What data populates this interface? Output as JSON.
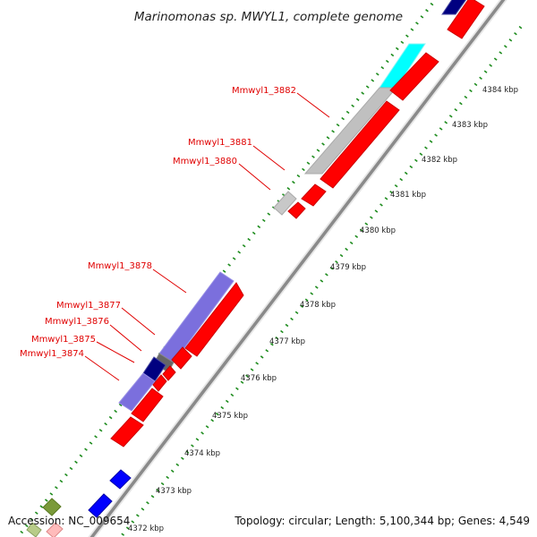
{
  "title": "Marinomonas sp. MWYL1, complete genome",
  "accession": "Accession: NC_009654",
  "summary": "Topology: circular; Length: 5,100,344 bp; Genes: 4,549",
  "gene_labels": [
    {
      "id": "gene-label-3882",
      "text": "Mmwyl1_3882"
    },
    {
      "id": "gene-label-3881",
      "text": "Mmwyl1_3881"
    },
    {
      "id": "gene-label-3880",
      "text": "Mmwyl1_3880"
    },
    {
      "id": "gene-label-3878",
      "text": "Mmwyl1_3878"
    },
    {
      "id": "gene-label-3877",
      "text": "Mmwyl1_3877"
    },
    {
      "id": "gene-label-3876",
      "text": "Mmwyl1_3876"
    },
    {
      "id": "gene-label-3875",
      "text": "Mmwyl1_3875"
    },
    {
      "id": "gene-label-3874",
      "text": "Mmwyl1_3874"
    }
  ],
  "ticks": [
    "4384 kbp",
    "4383 kbp",
    "4382 kbp",
    "4381 kbp",
    "4380 kbp",
    "4379 kbp",
    "4378 kbp",
    "4377 kbp",
    "4376 kbp",
    "4375 kbp",
    "4374 kbp",
    "4373 kbp",
    "4372 kbp"
  ],
  "colors": {
    "label_red": "#e00000",
    "feature_red": "#ff0000",
    "backbone": "#999999",
    "tick_green": "#1e8c1e",
    "grey_feature": "#c0c0c0",
    "cyan_feature": "#00ffff",
    "navy_feature": "#000080",
    "purple_feature": "#7b6fdd",
    "dark_grey_feature": "#666666",
    "blue_feature": "#0000ff",
    "olive_feature": "#7a9a3a",
    "pink_feature": "#ffbbbb"
  }
}
